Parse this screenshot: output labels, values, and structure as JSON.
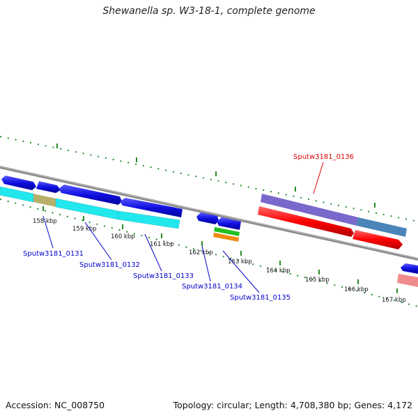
{
  "title": "Shewanella sp. W3-18-1, complete genome",
  "footer": {
    "accession": "Accession: NC_008750",
    "stats": "Topology: circular; Length: 4,708,380 bp; Genes: 4,172"
  },
  "ticks": [
    "158 kbp",
    "159 kbp",
    "160 kbp",
    "161 kbp",
    "162 kbp",
    "163 kbp",
    "164 kbp",
    "165 kbp",
    "166 kbp",
    "167 kbp"
  ],
  "gene_labels": [
    {
      "text": "Sputw3181_0131",
      "color": "#0000cc"
    },
    {
      "text": "Sputw3181_0132",
      "color": "#0000cc"
    },
    {
      "text": "Sputw3181_0133",
      "color": "#0000cc"
    },
    {
      "text": "Sputw3181_0134",
      "color": "#0000cc"
    },
    {
      "text": "Sputw3181_0135",
      "color": "#0000cc"
    },
    {
      "text": "Sputw3181_0136",
      "color": "#dd0000"
    }
  ],
  "colors": {
    "cds": "#1010e0",
    "rna": "#ff0000",
    "feature_cyan": "#22e8ee",
    "feature_purple": "#7a68cc",
    "feature_steel": "#4a84b8",
    "feature_pink": "#f08c8c",
    "backbone": "#8a8a8a",
    "tick_marks": "#2a8a2a"
  }
}
